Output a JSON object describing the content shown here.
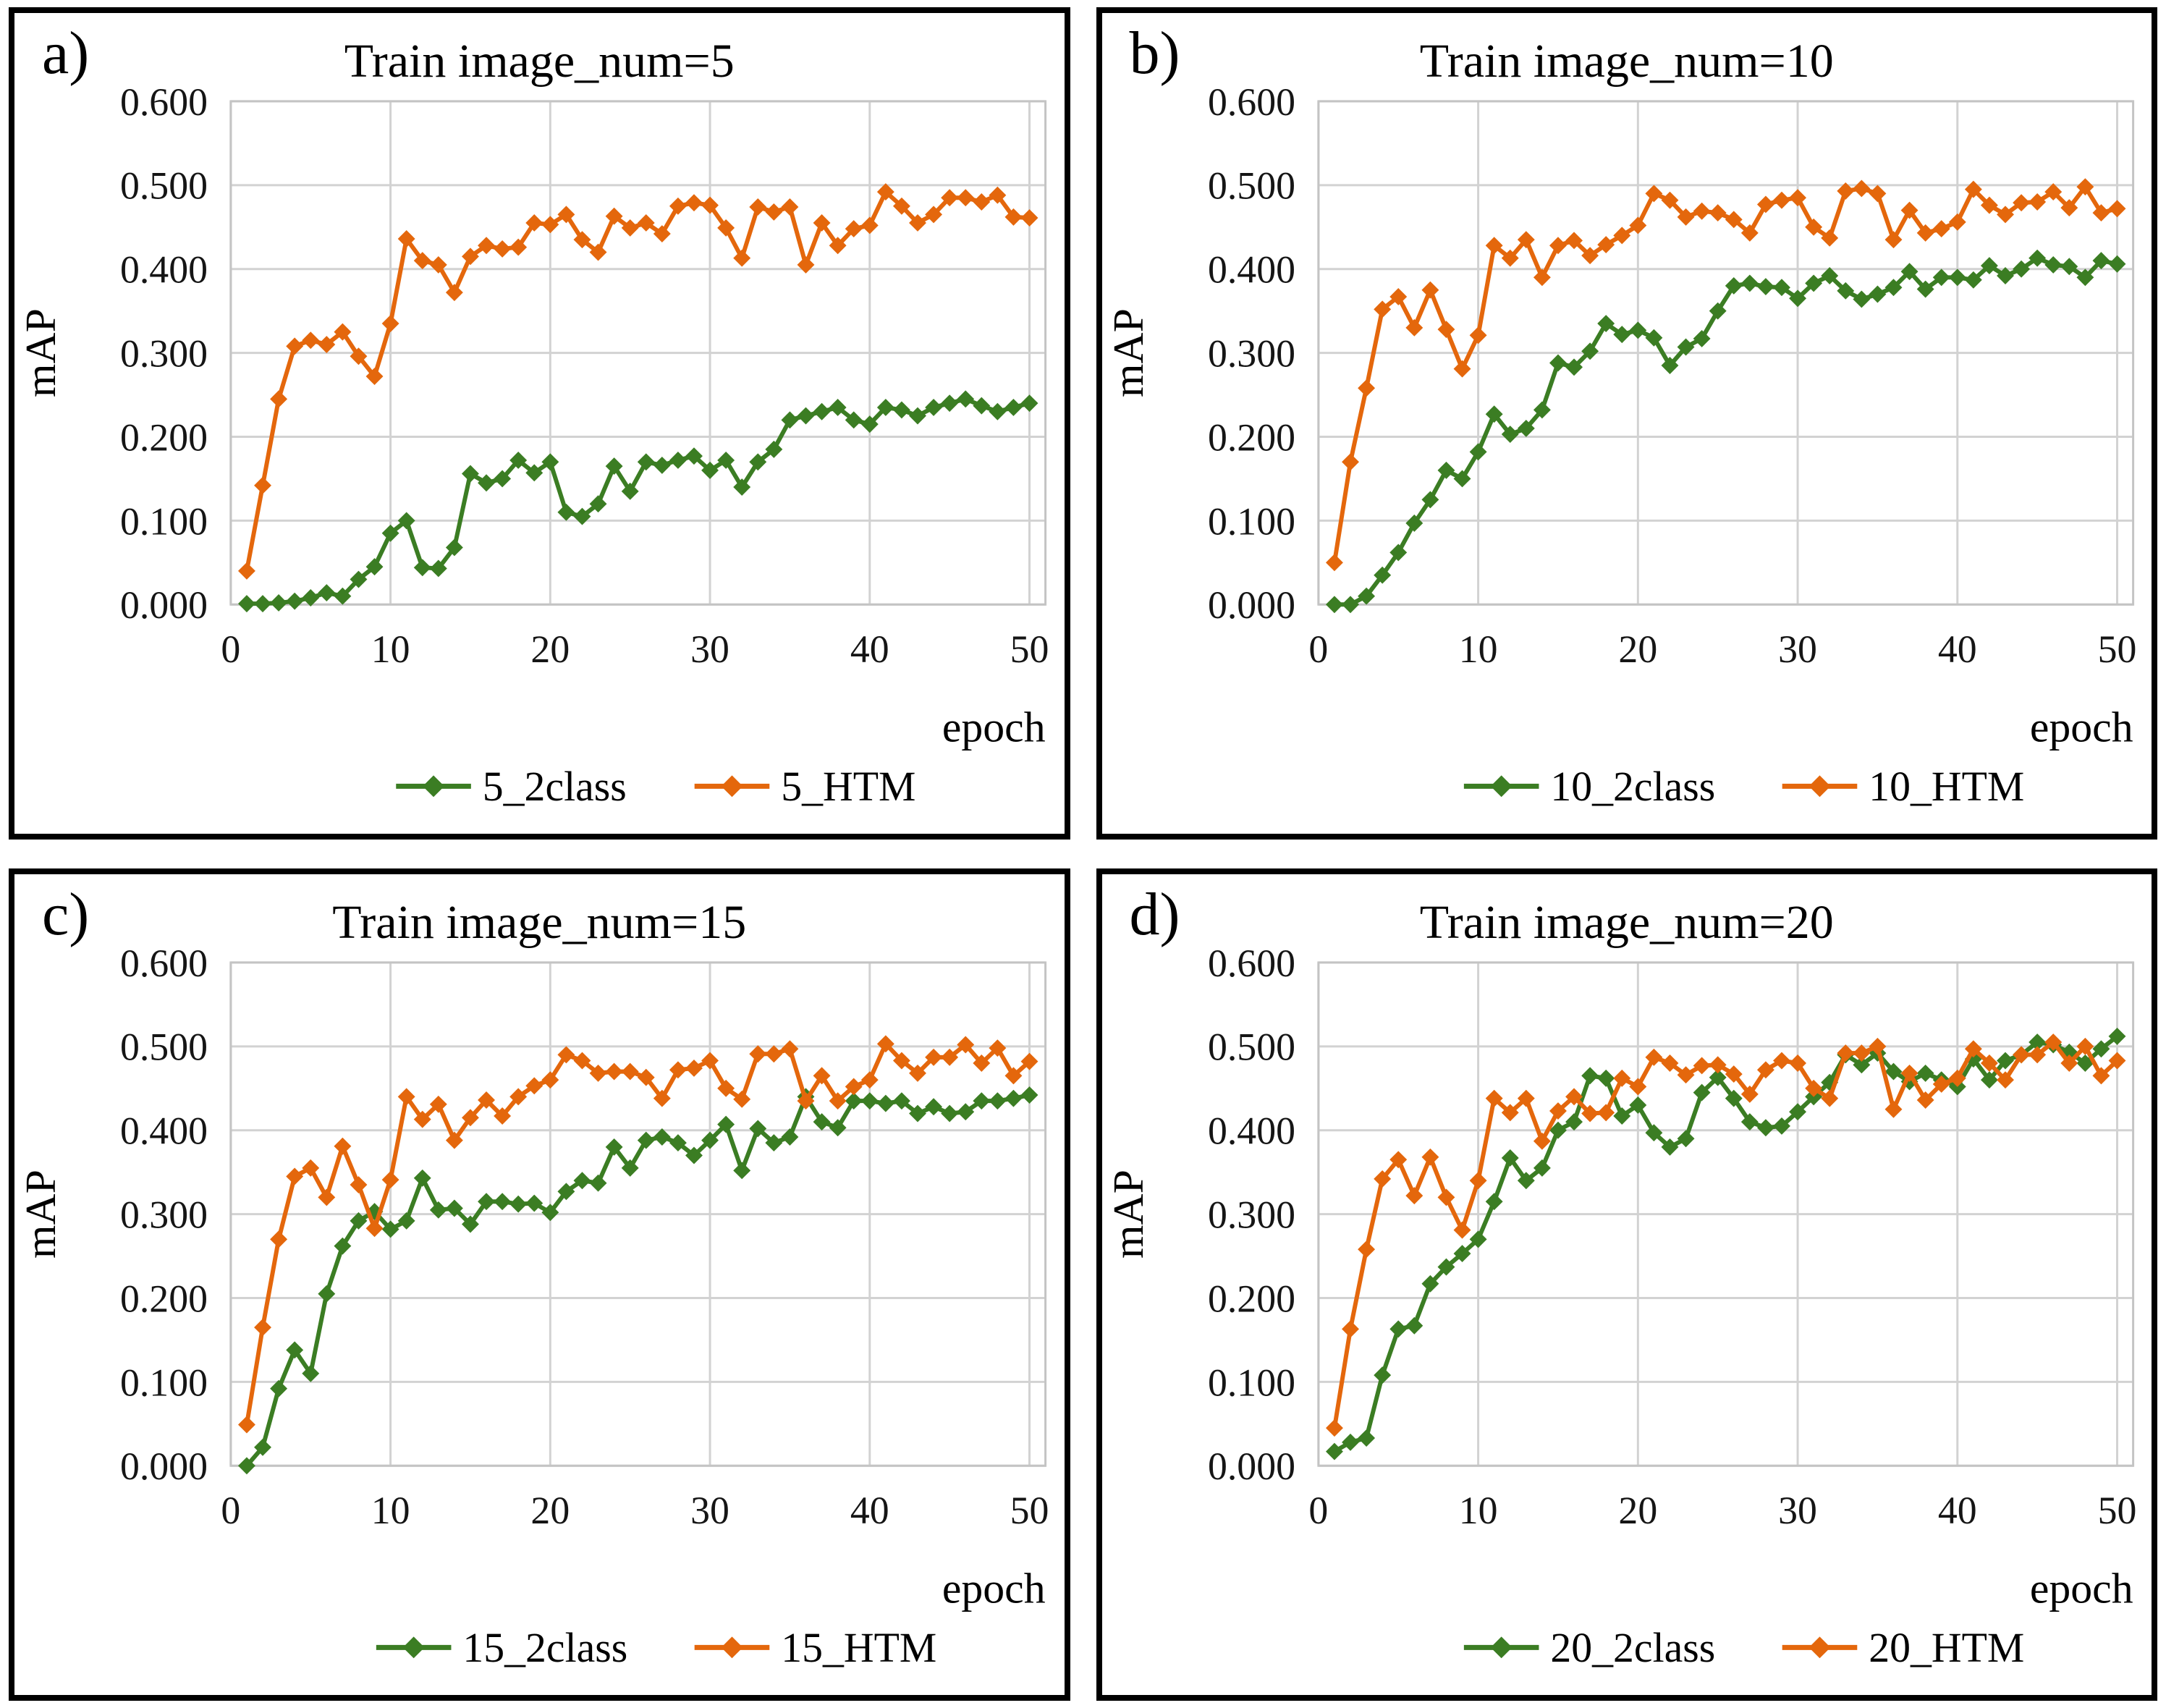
{
  "colors": {
    "green": "#3b7d23",
    "orange": "#e4670c",
    "grid": "#d2d2d2",
    "plot_border": "#c4c4c4",
    "text": "#151515",
    "panel_border": "#000000"
  },
  "axes": {
    "ylabel": "mAP",
    "xlabel": "epoch",
    "y_ticks": [
      0.0,
      0.1,
      0.2,
      0.3,
      0.4,
      0.5,
      0.6
    ],
    "y_tick_labels": [
      "0.000",
      "0.100",
      "0.200",
      "0.300",
      "0.400",
      "0.500",
      "0.600"
    ],
    "x_ticks": [
      0,
      10,
      20,
      30,
      40,
      50
    ],
    "x_tick_labels": [
      "0",
      "10",
      "20",
      "30",
      "40",
      "50"
    ],
    "ylim": [
      0.0,
      0.6
    ],
    "xlim": [
      0,
      51
    ],
    "grid": true
  },
  "epochs": [
    1,
    2,
    3,
    4,
    5,
    6,
    7,
    8,
    9,
    10,
    11,
    12,
    13,
    14,
    15,
    16,
    17,
    18,
    19,
    20,
    21,
    22,
    23,
    24,
    25,
    26,
    27,
    28,
    29,
    30,
    31,
    32,
    33,
    34,
    35,
    36,
    37,
    38,
    39,
    40,
    41,
    42,
    43,
    44,
    45,
    46,
    47,
    48,
    49,
    50
  ],
  "chart_data": [
    {
      "type": "line",
      "panel_label": "a)",
      "title": "Train image_num=5",
      "xlabel": "epoch",
      "ylabel": "mAP",
      "legend_position": "bottom",
      "series": [
        {
          "name": "5_2class",
          "color_key": "green",
          "values": [
            0.001,
            0.001,
            0.002,
            0.004,
            0.008,
            0.014,
            0.01,
            0.03,
            0.045,
            0.085,
            0.1,
            0.044,
            0.043,
            0.068,
            0.156,
            0.145,
            0.15,
            0.172,
            0.157,
            0.17,
            0.11,
            0.105,
            0.12,
            0.165,
            0.135,
            0.17,
            0.166,
            0.172,
            0.177,
            0.16,
            0.172,
            0.14,
            0.17,
            0.185,
            0.22,
            0.225,
            0.23,
            0.235,
            0.22,
            0.215,
            0.235,
            0.232,
            0.225,
            0.235,
            0.24,
            0.245,
            0.237,
            0.23,
            0.235,
            0.24
          ]
        },
        {
          "name": "5_HTM",
          "color_key": "orange",
          "values": [
            0.04,
            0.142,
            0.245,
            0.308,
            0.315,
            0.31,
            0.325,
            0.296,
            0.272,
            0.335,
            0.436,
            0.41,
            0.405,
            0.372,
            0.415,
            0.428,
            0.424,
            0.426,
            0.455,
            0.453,
            0.465,
            0.435,
            0.42,
            0.463,
            0.449,
            0.455,
            0.442,
            0.475,
            0.479,
            0.476,
            0.449,
            0.413,
            0.474,
            0.468,
            0.474,
            0.405,
            0.455,
            0.428,
            0.448,
            0.452,
            0.492,
            0.475,
            0.455,
            0.465,
            0.485,
            0.485,
            0.48,
            0.488,
            0.462,
            0.461
          ]
        }
      ]
    },
    {
      "type": "line",
      "panel_label": "b)",
      "title": "Train image_num=10",
      "xlabel": "epoch",
      "ylabel": "mAP",
      "legend_position": "bottom",
      "series": [
        {
          "name": "10_2class",
          "color_key": "green",
          "values": [
            0.0,
            0.0,
            0.01,
            0.035,
            0.062,
            0.097,
            0.125,
            0.16,
            0.15,
            0.182,
            0.227,
            0.203,
            0.21,
            0.232,
            0.288,
            0.283,
            0.302,
            0.335,
            0.322,
            0.327,
            0.318,
            0.285,
            0.307,
            0.317,
            0.35,
            0.38,
            0.383,
            0.379,
            0.378,
            0.365,
            0.383,
            0.392,
            0.374,
            0.364,
            0.37,
            0.378,
            0.397,
            0.376,
            0.39,
            0.39,
            0.387,
            0.404,
            0.392,
            0.4,
            0.413,
            0.405,
            0.403,
            0.39,
            0.41,
            0.406
          ]
        },
        {
          "name": "10_HTM",
          "color_key": "orange",
          "values": [
            0.05,
            0.17,
            0.258,
            0.352,
            0.367,
            0.33,
            0.375,
            0.328,
            0.281,
            0.321,
            0.428,
            0.413,
            0.435,
            0.39,
            0.428,
            0.434,
            0.416,
            0.429,
            0.44,
            0.452,
            0.49,
            0.482,
            0.462,
            0.469,
            0.467,
            0.459,
            0.443,
            0.477,
            0.482,
            0.485,
            0.45,
            0.437,
            0.493,
            0.496,
            0.49,
            0.435,
            0.47,
            0.443,
            0.448,
            0.456,
            0.495,
            0.476,
            0.465,
            0.479,
            0.48,
            0.492,
            0.473,
            0.498,
            0.467,
            0.472
          ]
        }
      ]
    },
    {
      "type": "line",
      "panel_label": "c)",
      "title": "Train image_num=15",
      "xlabel": "epoch",
      "ylabel": "mAP",
      "legend_position": "bottom",
      "series": [
        {
          "name": "15_2class",
          "color_key": "green",
          "values": [
            0.0,
            0.022,
            0.092,
            0.138,
            0.11,
            0.205,
            0.262,
            0.292,
            0.303,
            0.282,
            0.292,
            0.343,
            0.305,
            0.307,
            0.288,
            0.315,
            0.315,
            0.312,
            0.313,
            0.302,
            0.327,
            0.34,
            0.337,
            0.38,
            0.355,
            0.388,
            0.392,
            0.385,
            0.37,
            0.388,
            0.407,
            0.352,
            0.402,
            0.385,
            0.392,
            0.44,
            0.41,
            0.403,
            0.435,
            0.435,
            0.432,
            0.435,
            0.42,
            0.428,
            0.42,
            0.422,
            0.435,
            0.435,
            0.438,
            0.442
          ]
        },
        {
          "name": "15_HTM",
          "color_key": "orange",
          "values": [
            0.049,
            0.165,
            0.27,
            0.345,
            0.355,
            0.32,
            0.381,
            0.335,
            0.283,
            0.341,
            0.44,
            0.413,
            0.431,
            0.388,
            0.415,
            0.436,
            0.417,
            0.44,
            0.453,
            0.46,
            0.49,
            0.483,
            0.468,
            0.47,
            0.47,
            0.463,
            0.438,
            0.472,
            0.474,
            0.483,
            0.45,
            0.437,
            0.491,
            0.491,
            0.497,
            0.435,
            0.465,
            0.435,
            0.452,
            0.46,
            0.503,
            0.483,
            0.468,
            0.487,
            0.487,
            0.502,
            0.48,
            0.498,
            0.465,
            0.482
          ]
        }
      ]
    },
    {
      "type": "line",
      "panel_label": "d)",
      "title": "Train image_num=20",
      "xlabel": "epoch",
      "ylabel": "mAP",
      "legend_position": "bottom",
      "series": [
        {
          "name": "20_2class",
          "color_key": "green",
          "values": [
            0.017,
            0.028,
            0.033,
            0.108,
            0.163,
            0.167,
            0.217,
            0.237,
            0.253,
            0.27,
            0.315,
            0.367,
            0.34,
            0.355,
            0.4,
            0.41,
            0.465,
            0.462,
            0.417,
            0.43,
            0.397,
            0.38,
            0.39,
            0.445,
            0.463,
            0.438,
            0.41,
            0.403,
            0.405,
            0.422,
            0.44,
            0.457,
            0.49,
            0.478,
            0.492,
            0.47,
            0.458,
            0.468,
            0.46,
            0.452,
            0.485,
            0.46,
            0.483,
            0.49,
            0.505,
            0.502,
            0.493,
            0.48,
            0.497,
            0.512
          ]
        },
        {
          "name": "20_HTM",
          "color_key": "orange",
          "values": [
            0.045,
            0.163,
            0.258,
            0.342,
            0.365,
            0.322,
            0.368,
            0.32,
            0.281,
            0.34,
            0.438,
            0.421,
            0.438,
            0.387,
            0.423,
            0.44,
            0.42,
            0.421,
            0.462,
            0.452,
            0.487,
            0.48,
            0.466,
            0.477,
            0.478,
            0.467,
            0.443,
            0.472,
            0.483,
            0.48,
            0.45,
            0.438,
            0.492,
            0.492,
            0.5,
            0.425,
            0.468,
            0.436,
            0.455,
            0.462,
            0.497,
            0.48,
            0.46,
            0.49,
            0.49,
            0.505,
            0.48,
            0.5,
            0.465,
            0.483
          ]
        }
      ]
    }
  ]
}
